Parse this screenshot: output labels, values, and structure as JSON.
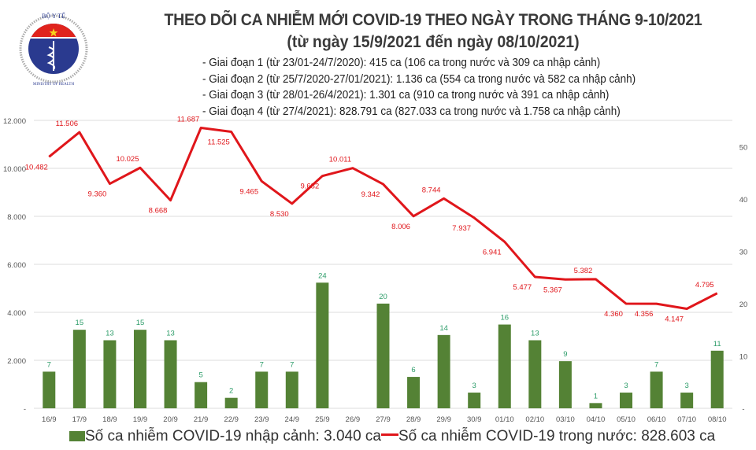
{
  "logo": {
    "top_text": "BỘ Y TẾ",
    "bottom_text": "MINISTRY OF HEALTH"
  },
  "title": "THEO DÕI CA NHIỄM MỚI COVID-19 THEO NGÀY TRONG THÁNG 9-10/2021",
  "subtitle": "(từ ngày 15/9/2021 đến ngày 08/10/2021)",
  "stages": [
    "- Giai đoạn 1 (từ 23/01-24/7/2020): 415 ca (106 ca trong nước và 309 ca nhập cảnh)",
    "- Giai đoạn 2 (từ 25/7/2020-27/01/2021): 1.136 ca (554 ca trong nước và 582 ca nhập cảnh)",
    "- Giai đoạn 3 (từ 28/01-26/4/2021): 1.301 ca (910 ca trong nước và 391 ca nhập cảnh)",
    "- Giai đoạn 4 (từ 27/4/2021): 828.791 ca (827.033 ca trong nước và 1.758 ca nhập cảnh)"
  ],
  "chart_data": {
    "type": "bar+line",
    "categories": [
      "16/9",
      "17/9",
      "18/9",
      "19/9",
      "20/9",
      "21/9",
      "22/9",
      "23/9",
      "24/9",
      "25/9",
      "26/9",
      "27/9",
      "28/9",
      "29/9",
      "30/9",
      "01/10",
      "02/10",
      "03/10",
      "04/10",
      "05/10",
      "06/10",
      "07/10",
      "08/10"
    ],
    "series": [
      {
        "name": "Số ca nhiễm COVID-19 nhập cảnh: 3.040 ca",
        "type": "bar",
        "axis": "right",
        "color": "#548235",
        "values": [
          7,
          15,
          13,
          15,
          13,
          5,
          2,
          7,
          7,
          24,
          0,
          20,
          6,
          14,
          3,
          16,
          13,
          9,
          1,
          3,
          7,
          3,
          11
        ],
        "labels": [
          "7",
          "15",
          "13",
          "15",
          "13",
          "5",
          "2",
          "7",
          "7",
          "24",
          "",
          "20",
          "6",
          "14",
          "3",
          "16",
          "13",
          "9",
          "1",
          "3",
          "7",
          "3",
          "11"
        ]
      },
      {
        "name": "Số ca nhiễm COVID-19 trong nước: 828.603 ca",
        "type": "line",
        "axis": "left",
        "color": "#e0161b",
        "values": [
          10482,
          11506,
          9360,
          10025,
          8668,
          11687,
          11525,
          9465,
          8530,
          9682,
          10011,
          9342,
          8006,
          8744,
          7937,
          6941,
          5477,
          5367,
          5382,
          4360,
          4356,
          4147,
          4795
        ],
        "labels": [
          "10.482",
          "11.506",
          "9.360",
          "10.025",
          "8.668",
          "11.687",
          "11.525",
          "9.465",
          "8.530",
          "9.682",
          "10.011",
          "9.342",
          "8.006",
          "8.744",
          "7.937",
          "6.941",
          "5.477",
          "5.367",
          "5.382",
          "4.360",
          "4.356",
          "4.147",
          "4.795"
        ]
      }
    ],
    "left_axis": {
      "ylim": [
        0,
        12000
      ],
      "ticks": [
        0,
        2000,
        4000,
        6000,
        8000,
        10000,
        12000
      ],
      "tick_labels": [
        "-",
        "2.000",
        "4.000",
        "6.000",
        "8.000",
        "10.000",
        "12.000"
      ]
    },
    "right_axis": {
      "ylim": [
        0,
        55
      ],
      "ticks": [
        0,
        10,
        20,
        30,
        40,
        50
      ],
      "tick_labels": [
        "-",
        "10",
        "20",
        "30",
        "40",
        "50"
      ]
    },
    "grid": true,
    "legend": "bottom",
    "bar_label_color": "#2e9d6a",
    "line_label_color": "#e0161b"
  }
}
